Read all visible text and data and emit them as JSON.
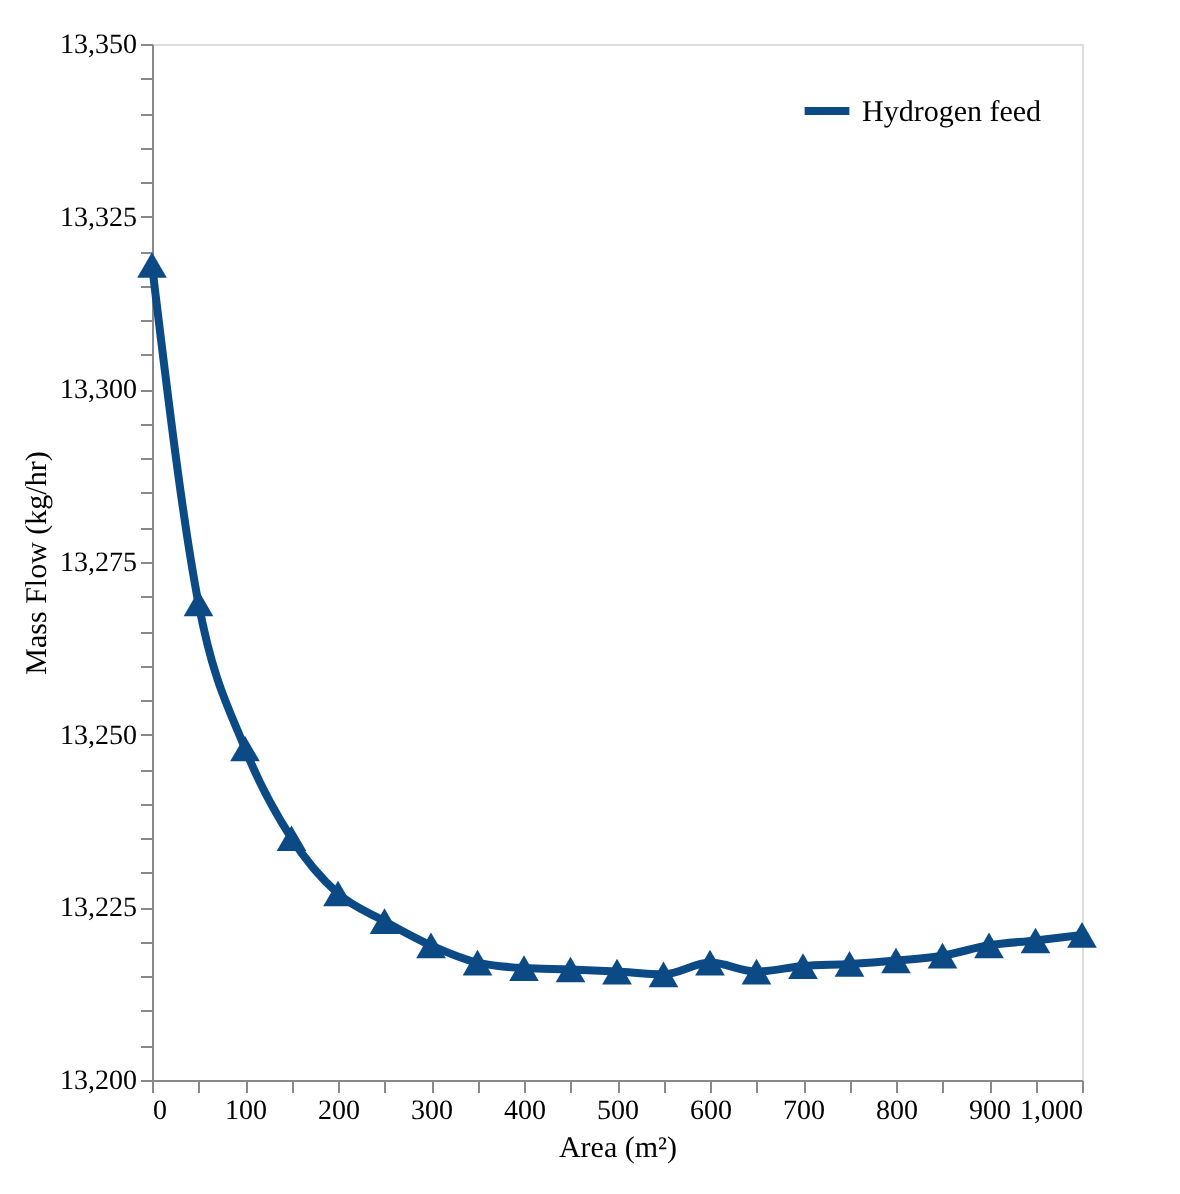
{
  "chart_data": {
    "type": "line",
    "xlabel": "Area (m²)",
    "ylabel": "Mass Flow (kg/hr)",
    "x": [
      0,
      50,
      100,
      150,
      200,
      250,
      300,
      350,
      400,
      450,
      500,
      550,
      600,
      650,
      700,
      750,
      800,
      850,
      900,
      950,
      1000
    ],
    "series": [
      {
        "name": "Hydrogen feed",
        "color": "#0b4a84",
        "values": [
          13318,
          13269,
          13248,
          13235,
          13227,
          13223,
          13219.5,
          13217,
          13216.2,
          13216,
          13215.7,
          13215.3,
          13217,
          13215.7,
          13216.5,
          13216.8,
          13217.3,
          13218,
          13219.5,
          13220.2,
          13221
        ]
      }
    ],
    "xlim": [
      0,
      1000
    ],
    "xticks": [
      0,
      {
        "value": 50,
        "label": null
      },
      100,
      {
        "value": 150,
        "label": null
      },
      200,
      {
        "value": 250,
        "label": null
      },
      300,
      {
        "value": 350,
        "label": null
      },
      400,
      {
        "value": 450,
        "label": null
      },
      500,
      {
        "value": 550,
        "label": null
      },
      600,
      {
        "value": 650,
        "label": null
      },
      700,
      {
        "value": 750,
        "label": null
      },
      800,
      {
        "value": 850,
        "label": null
      },
      900,
      {
        "value": 950,
        "label": null
      },
      {
        "value": 1000,
        "label": "1,000"
      }
    ],
    "ylim": [
      13200,
      13350
    ],
    "yticks": [
      {
        "value": 13200,
        "label": "13,200"
      },
      {
        "value": 13205,
        "label": null
      },
      {
        "value": 13210,
        "label": null
      },
      {
        "value": 13215,
        "label": null
      },
      {
        "value": 13220,
        "label": null
      },
      {
        "value": 13225,
        "label": "13,225"
      },
      {
        "value": 13230,
        "label": null
      },
      {
        "value": 13235,
        "label": null
      },
      {
        "value": 13240,
        "label": null
      },
      {
        "value": 13245,
        "label": null
      },
      {
        "value": 13250,
        "label": "13,250"
      },
      {
        "value": 13255,
        "label": null
      },
      {
        "value": 13260,
        "label": null
      },
      {
        "value": 13265,
        "label": null
      },
      {
        "value": 13270,
        "label": null
      },
      {
        "value": 13275,
        "label": "13,275"
      },
      {
        "value": 13280,
        "label": null
      },
      {
        "value": 13285,
        "label": null
      },
      {
        "value": 13290,
        "label": null
      },
      {
        "value": 13295,
        "label": null
      },
      {
        "value": 13300,
        "label": "13,300"
      },
      {
        "value": 13305,
        "label": null
      },
      {
        "value": 13310,
        "label": null
      },
      {
        "value": 13315,
        "label": null
      },
      {
        "value": 13320,
        "label": null
      },
      {
        "value": 13325,
        "label": "13,325"
      },
      {
        "value": 13330,
        "label": null
      },
      {
        "value": 13335,
        "label": null
      },
      {
        "value": 13340,
        "label": null
      },
      {
        "value": 13345,
        "label": null
      },
      {
        "value": 13350,
        "label": "13,350"
      }
    ],
    "grid": false,
    "legend": "top right",
    "marker": "triangle",
    "line_style": "solid"
  }
}
